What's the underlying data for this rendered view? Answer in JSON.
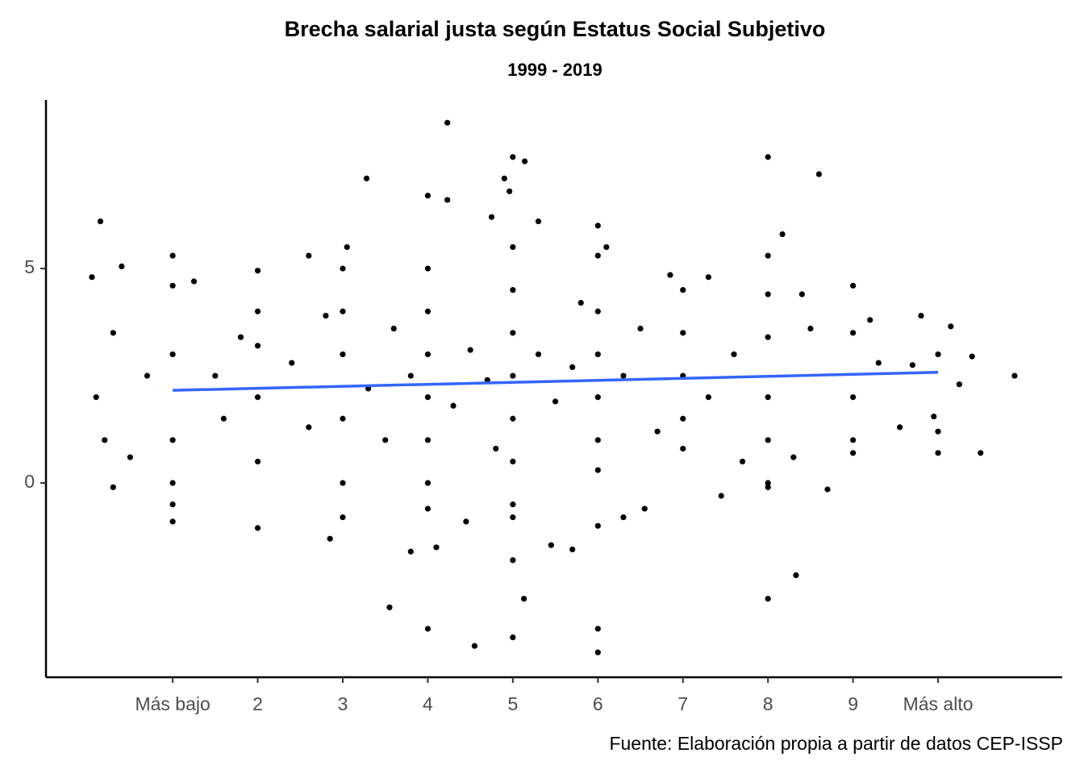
{
  "chart_data": {
    "type": "scatter",
    "title": "Brecha salarial justa según Estatus Social Subjetivo",
    "subtitle": "1999 - 2019",
    "caption": "Fuente: Elaboración propia a partir de datos CEP-ISSP",
    "xlim": [
      -0.49,
      11.46
    ],
    "ylim": [
      -4.53,
      8.93
    ],
    "xticks": [
      {
        "value": 1,
        "label": "Más bajo"
      },
      2,
      3,
      4,
      5,
      6,
      7,
      8,
      9,
      {
        "value": 10,
        "label": "Más alto"
      }
    ],
    "yticks": [
      0,
      5
    ],
    "series": [
      {
        "color": "#000000",
        "x": [
          4.23,
          5.0,
          5.14,
          3.28,
          8.0,
          8.6,
          0.15,
          4.0,
          4.23,
          4.9,
          4.96,
          6.0,
          5.3,
          4.75,
          8.17,
          6.1,
          3.05,
          1.0,
          0.4,
          0.05,
          2.0,
          1.25,
          2.6,
          4.55,
          5.0,
          5.13,
          4.0,
          6.0,
          6.0,
          3.55,
          8.0,
          8.33,
          5.0,
          3.8,
          4.1,
          4.45,
          2.85,
          2.0,
          1.0,
          9.0,
          9.0,
          10.0,
          10.5,
          10.9,
          10.4,
          10.25,
          9.8,
          9.7,
          9.55,
          8.7,
          0.3,
          7.45,
          6.3,
          6.55,
          5.45,
          5.7,
          10.0,
          10.0,
          10.15,
          9.95,
          9.3,
          8.4,
          7.3,
          6.85,
          0.1,
          0.2,
          0.5,
          0.3,
          0.7,
          1.0,
          1.0,
          1.0,
          1.0,
          1.0,
          1.5,
          1.6,
          1.8,
          2.0,
          2.0,
          2.0,
          2.0,
          2.4,
          2.6,
          2.8,
          3.0,
          3.0,
          3.0,
          3.0,
          3.0,
          3.0,
          3.3,
          3.5,
          3.6,
          3.8,
          4.0,
          4.0,
          4.0,
          4.0,
          4.0,
          4.0,
          4.0,
          4.3,
          4.5,
          4.7,
          4.8,
          5.0,
          5.0,
          5.0,
          5.0,
          5.0,
          5.0,
          5.0,
          5.0,
          5.3,
          5.5,
          5.7,
          5.8,
          6.0,
          6.0,
          6.0,
          6.0,
          6.0,
          6.0,
          6.0,
          6.3,
          6.5,
          6.7,
          7.0,
          7.0,
          7.0,
          7.0,
          7.0,
          7.3,
          7.6,
          7.7,
          8.0,
          8.0,
          8.0,
          8.0,
          8.0,
          8.0,
          8.0,
          8.5,
          8.3,
          9.0,
          9.0,
          9.0,
          9.2
        ],
        "values": [
          8.4,
          7.6,
          7.5,
          7.1,
          7.6,
          7.2,
          6.1,
          6.7,
          6.6,
          7.1,
          6.8,
          6.0,
          6.1,
          6.2,
          5.8,
          5.5,
          5.5,
          5.3,
          5.05,
          4.8,
          4.95,
          4.7,
          5.3,
          -3.8,
          -3.6,
          -2.7,
          -3.4,
          -3.4,
          -3.95,
          -2.9,
          -2.7,
          -2.15,
          -1.8,
          -1.6,
          -1.5,
          -0.9,
          -1.3,
          -1.05,
          -0.9,
          4.6,
          0.7,
          0.7,
          0.7,
          2.5,
          2.95,
          2.3,
          3.9,
          2.75,
          1.3,
          -0.15,
          -0.1,
          -0.3,
          -0.8,
          -0.6,
          -1.45,
          -1.55,
          3.0,
          1.2,
          3.65,
          1.55,
          2.8,
          4.4,
          4.8,
          4.85,
          2.0,
          1.0,
          0.6,
          3.5,
          2.5,
          4.6,
          3.0,
          1.0,
          0.0,
          -0.5,
          2.5,
          1.5,
          3.4,
          4.0,
          2.0,
          0.5,
          3.2,
          2.8,
          1.3,
          3.9,
          5.0,
          4.0,
          3.0,
          1.5,
          0.0,
          -0.8,
          2.2,
          1.0,
          3.6,
          2.5,
          5.0,
          4.0,
          3.0,
          2.0,
          1.0,
          0.0,
          -0.6,
          1.8,
          3.1,
          2.4,
          0.8,
          5.5,
          4.5,
          3.5,
          2.5,
          1.5,
          0.5,
          -0.5,
          -0.8,
          3.0,
          1.9,
          2.7,
          4.2,
          5.3,
          4.0,
          3.0,
          2.0,
          1.0,
          0.3,
          -1.0,
          2.5,
          3.6,
          1.2,
          4.5,
          3.5,
          2.5,
          1.5,
          0.8,
          2.0,
          3.0,
          0.5,
          5.3,
          4.4,
          3.4,
          2.0,
          1.0,
          0.0,
          -0.1,
          3.6,
          0.6,
          3.5,
          2.0,
          1.0,
          3.8
        ]
      }
    ],
    "trend": {
      "color": "#3366ff",
      "x": [
        1,
        10
      ],
      "values": [
        2.16,
        2.58
      ]
    }
  }
}
